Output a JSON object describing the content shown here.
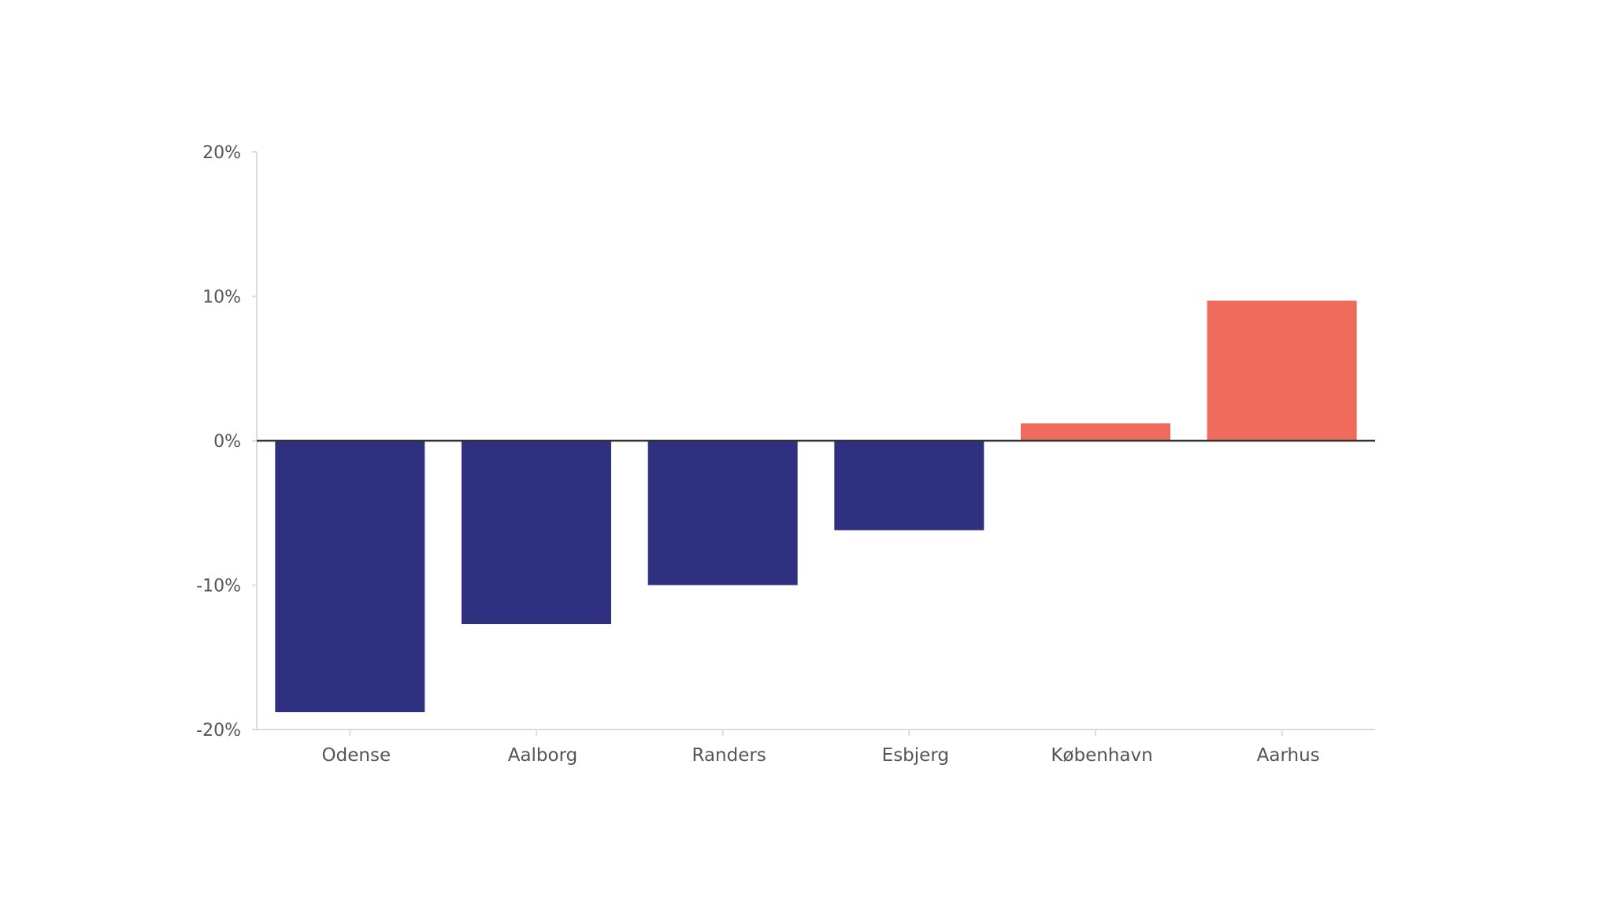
{
  "chart_data": {
    "type": "bar",
    "categories": [
      "Odense",
      "Aalborg",
      "Randers",
      "Esbjerg",
      "København",
      "Aarhus"
    ],
    "values": [
      -18.8,
      -12.7,
      -10.0,
      -6.2,
      1.2,
      9.7
    ],
    "ylim": [
      -20,
      20
    ],
    "yticks": [
      {
        "value": 20,
        "label": "20%"
      },
      {
        "value": 10,
        "label": "10%"
      },
      {
        "value": 0,
        "label": "0%"
      },
      {
        "value": -10,
        "label": "-10%"
      },
      {
        "value": -20,
        "label": "-20%"
      }
    ],
    "colors": {
      "negative": "#2f3080",
      "positive": "#ef6b5b",
      "zero_line": "#333333",
      "axis": "#dddddd",
      "tick_text": "#555555"
    },
    "grid": false,
    "legend": "none"
  }
}
